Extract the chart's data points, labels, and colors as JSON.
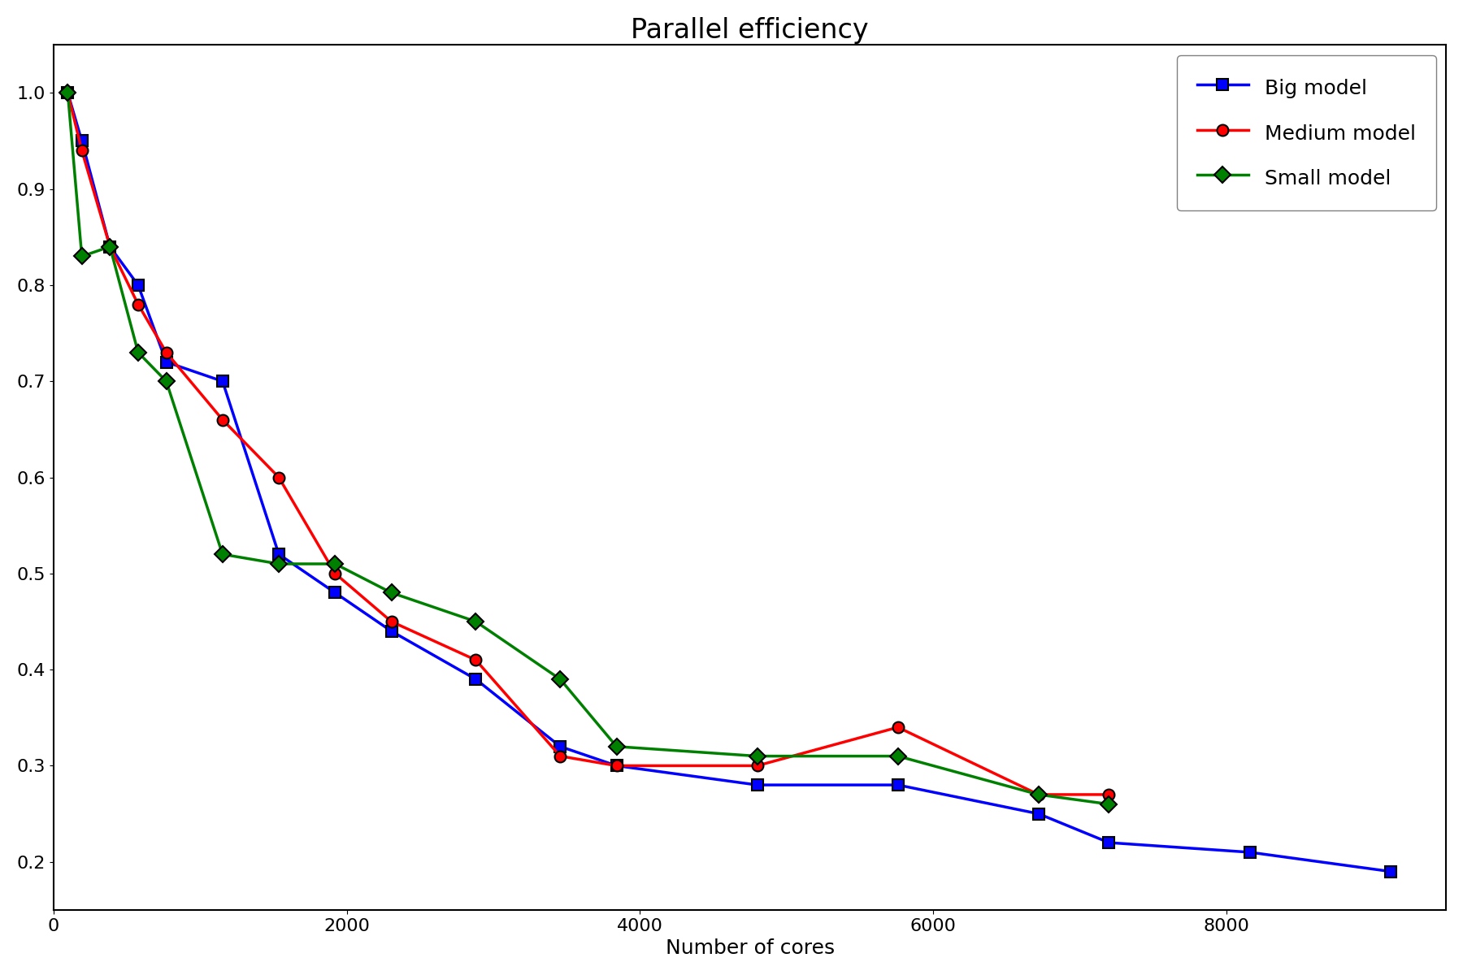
{
  "title": "Parallel efficiency",
  "xlabel": "Number of cores",
  "ylabel": "",
  "big_model": {
    "label": "Big model",
    "color": "blue",
    "marker": "s",
    "markerfc": "blue",
    "x": [
      96,
      192,
      384,
      576,
      768,
      1152,
      1536,
      1920,
      2304,
      2880,
      3456,
      3840,
      4800,
      5760,
      6720,
      7200,
      8160,
      9120
    ],
    "y": [
      1.0,
      0.95,
      0.84,
      0.8,
      0.72,
      0.7,
      0.52,
      0.48,
      0.44,
      0.39,
      0.32,
      0.3,
      0.28,
      0.28,
      0.25,
      0.22,
      0.21,
      0.19
    ]
  },
  "medium_model": {
    "label": "Medium model",
    "color": "red",
    "marker": "o",
    "markerfc": "red",
    "x": [
      96,
      192,
      384,
      576,
      768,
      1152,
      1536,
      1920,
      2304,
      2880,
      3456,
      3840,
      4800,
      5760,
      6720,
      7200
    ],
    "y": [
      1.0,
      0.94,
      0.84,
      0.78,
      0.73,
      0.66,
      0.6,
      0.5,
      0.45,
      0.41,
      0.31,
      0.3,
      0.3,
      0.34,
      0.27,
      0.27
    ]
  },
  "small_model": {
    "label": "Small model",
    "color": "green",
    "marker": "D",
    "markerfc": "green",
    "x": [
      96,
      192,
      384,
      576,
      768,
      1152,
      1536,
      1920,
      2304,
      2880,
      3456,
      3840,
      4800,
      5760,
      6720,
      7200
    ],
    "y": [
      1.0,
      0.83,
      0.84,
      0.73,
      0.7,
      0.52,
      0.51,
      0.51,
      0.48,
      0.45,
      0.39,
      0.32,
      0.31,
      0.31,
      0.27,
      0.26
    ]
  },
  "xlim": [
    0,
    9500
  ],
  "ylim": [
    0.15,
    1.05
  ],
  "linewidth": 2.5,
  "markersize": 10,
  "title_fontsize": 24,
  "label_fontsize": 18,
  "tick_fontsize": 16,
  "legend_fontsize": 18,
  "legend_loc": "upper right"
}
